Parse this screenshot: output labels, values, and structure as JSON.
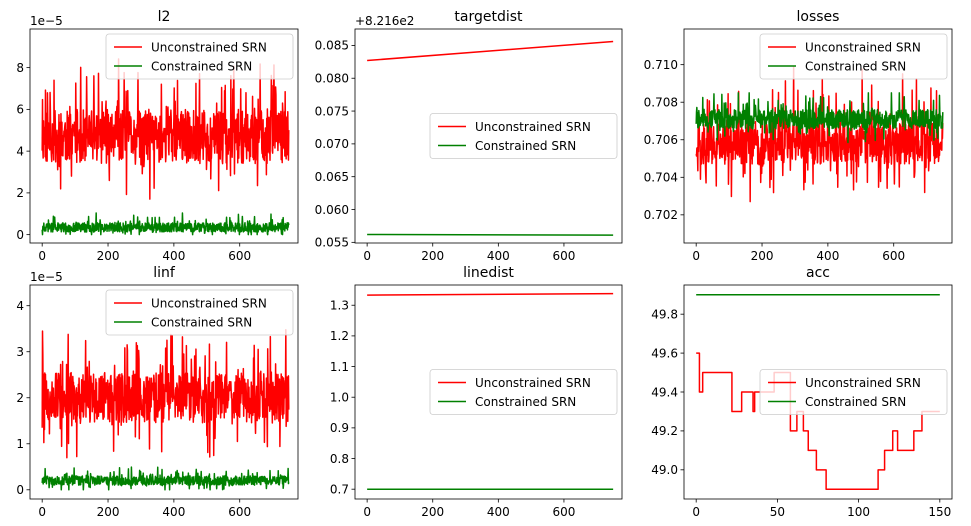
{
  "chart_data": [
    {
      "type": "line",
      "title": "l2",
      "axis_offset": "1e−5",
      "xlim": [
        -37,
        777
      ],
      "ylim": [
        -0.4,
        9.85
      ],
      "xticks": [
        0,
        200,
        400,
        600
      ],
      "yticks": [
        0,
        2,
        4,
        6,
        8
      ],
      "ytick_labels": [
        "0",
        "2",
        "4",
        "6",
        "8"
      ],
      "legend": "upper-right",
      "series": [
        {
          "name": "Unconstrained SRN",
          "color": "#ff0000",
          "kind": "noise",
          "n": 750,
          "mean": 4.7,
          "amp": 1.3,
          "spike": 2.6,
          "min": 1.7,
          "max": 9.3,
          "seed": 11
        },
        {
          "name": "Constrained SRN",
          "color": "#008000",
          "kind": "noise",
          "n": 750,
          "mean": 0.35,
          "amp": 0.22,
          "spike": 0.5,
          "min": 0.0,
          "max": 1.3,
          "seed": 12
        }
      ]
    },
    {
      "type": "line",
      "title": "targetdist",
      "axis_offset": "+8.216e2",
      "xlim": [
        -37,
        777
      ],
      "ylim": [
        0.0549,
        0.0875
      ],
      "xticks": [
        0,
        200,
        400,
        600
      ],
      "yticks": [
        0.055,
        0.06,
        0.065,
        0.07,
        0.075,
        0.08,
        0.085
      ],
      "ytick_labels": [
        "0.055",
        "0.060",
        "0.065",
        "0.070",
        "0.075",
        "0.080",
        "0.085"
      ],
      "legend": "center-right",
      "series": [
        {
          "name": "Unconstrained SRN",
          "color": "#ff0000",
          "kind": "linear",
          "x0": 0,
          "x1": 750,
          "y0": 0.0827,
          "y1": 0.0856
        },
        {
          "name": "Constrained SRN",
          "color": "#008000",
          "kind": "linear",
          "x0": 0,
          "x1": 750,
          "y0": 0.0562,
          "y1": 0.0561
        }
      ]
    },
    {
      "type": "line",
      "title": "losses",
      "axis_offset": "",
      "xlim": [
        -37,
        777
      ],
      "ylim": [
        0.7005,
        0.7119
      ],
      "xticks": [
        0,
        200,
        400,
        600
      ],
      "yticks": [
        0.702,
        0.704,
        0.706,
        0.708,
        0.71
      ],
      "ytick_labels": [
        "0.702",
        "0.704",
        "0.706",
        "0.708",
        "0.710"
      ],
      "legend": "upper-right",
      "series": [
        {
          "name": "Unconstrained SRN",
          "color": "#ff0000",
          "kind": "noise",
          "n": 750,
          "mean": 0.7058,
          "amp": 0.0011,
          "spike": 0.0032,
          "min": 0.701,
          "max": 0.7115,
          "seed": 21
        },
        {
          "name": "Constrained SRN",
          "color": "#008000",
          "kind": "noise",
          "n": 750,
          "mean": 0.7071,
          "amp": 0.0005,
          "spike": 0.0012,
          "min": 0.7053,
          "max": 0.7085,
          "seed": 22
        }
      ]
    },
    {
      "type": "line",
      "title": "linf",
      "axis_offset": "1e−5",
      "xlim": [
        -37,
        777
      ],
      "ylim": [
        -0.2,
        4.45
      ],
      "xticks": [
        0,
        200,
        400,
        600
      ],
      "yticks": [
        0,
        1,
        2,
        3,
        4
      ],
      "ytick_labels": [
        "0",
        "1",
        "2",
        "3",
        "4"
      ],
      "legend": "upper-right",
      "series": [
        {
          "name": "Unconstrained SRN",
          "color": "#ff0000",
          "kind": "noise",
          "n": 750,
          "mean": 2.0,
          "amp": 0.55,
          "spike": 1.25,
          "min": 0.65,
          "max": 4.3,
          "seed": 31
        },
        {
          "name": "Constrained SRN",
          "color": "#008000",
          "kind": "noise",
          "n": 750,
          "mean": 0.2,
          "amp": 0.1,
          "spike": 0.22,
          "min": 0.0,
          "max": 0.62,
          "seed": 32
        }
      ]
    },
    {
      "type": "line",
      "title": "linedist",
      "axis_offset": "",
      "xlim": [
        -37,
        777
      ],
      "ylim": [
        0.668,
        1.366
      ],
      "xticks": [
        0,
        200,
        400,
        600
      ],
      "yticks": [
        0.7,
        0.8,
        0.9,
        1.0,
        1.1,
        1.2,
        1.3
      ],
      "ytick_labels": [
        "0.7",
        "0.8",
        "0.9",
        "1.0",
        "1.1",
        "1.2",
        "1.3"
      ],
      "legend": "center-right",
      "series": [
        {
          "name": "Unconstrained SRN",
          "color": "#ff0000",
          "kind": "linear",
          "x0": 0,
          "x1": 750,
          "y0": 1.333,
          "y1": 1.338
        },
        {
          "name": "Constrained SRN",
          "color": "#008000",
          "kind": "linear",
          "x0": 0,
          "x1": 750,
          "y0": 0.7,
          "y1": 0.7
        }
      ]
    },
    {
      "type": "line",
      "title": "acc",
      "axis_offset": "",
      "xlim": [
        -7.5,
        157.5
      ],
      "ylim": [
        48.85,
        49.95
      ],
      "xticks": [
        0,
        50,
        100,
        150
      ],
      "yticks": [
        49.0,
        49.2,
        49.4,
        49.6,
        49.8
      ],
      "ytick_labels": [
        "49.0",
        "49.2",
        "49.4",
        "49.6",
        "49.8"
      ],
      "legend": "center-right",
      "series": [
        {
          "name": "Unconstrained SRN",
          "color": "#ff0000",
          "kind": "points",
          "step": true,
          "x": [
            0,
            2,
            4,
            22,
            26,
            28,
            32,
            35,
            36,
            38,
            43,
            46,
            48,
            52,
            58,
            62,
            66,
            69,
            74,
            80,
            112,
            116,
            121,
            124,
            130,
            134,
            137,
            139,
            143,
            147,
            150
          ],
          "y": [
            49.6,
            49.4,
            49.5,
            49.3,
            49.3,
            49.4,
            49.4,
            49.3,
            49.4,
            49.4,
            49.4,
            49.4,
            49.5,
            49.5,
            49.2,
            49.3,
            49.2,
            49.1,
            49.0,
            48.9,
            49.0,
            49.1,
            49.2,
            49.1,
            49.1,
            49.2,
            49.2,
            49.3,
            49.3,
            49.3,
            49.3
          ]
        },
        {
          "name": "Constrained SRN",
          "color": "#008000",
          "kind": "points",
          "step": false,
          "x": [
            0,
            150
          ],
          "y": [
            49.9,
            49.9
          ]
        }
      ]
    }
  ]
}
